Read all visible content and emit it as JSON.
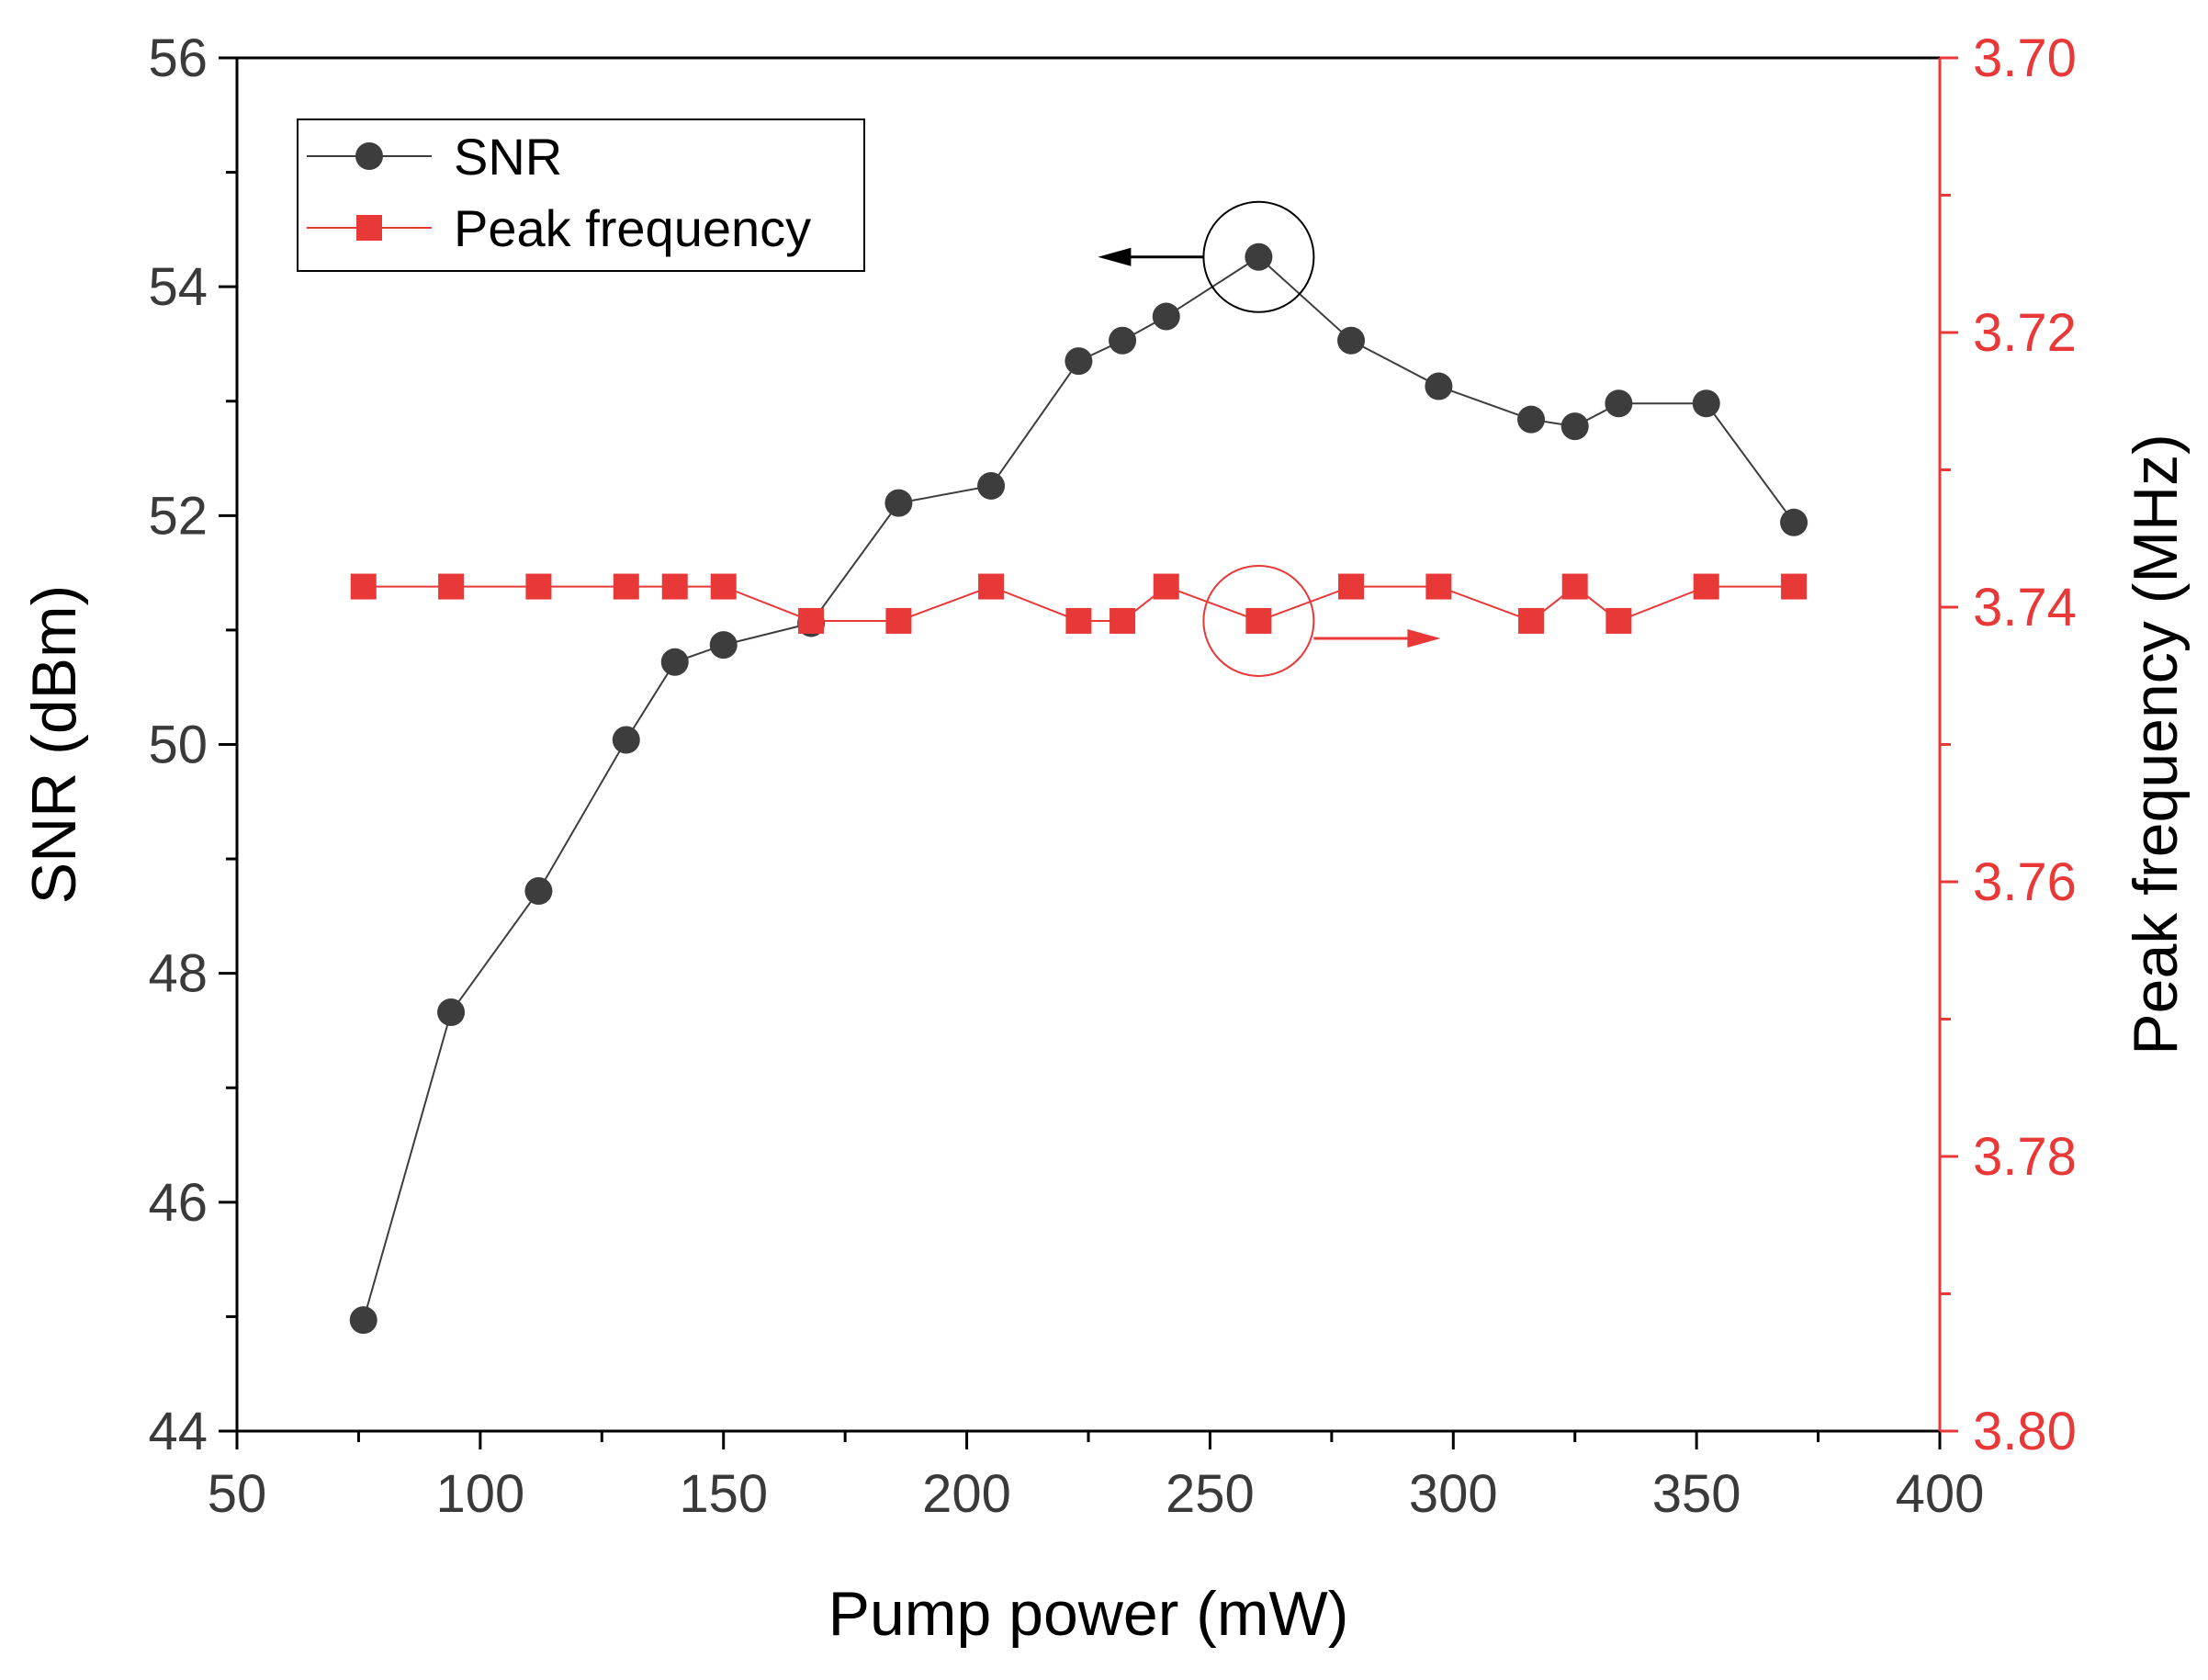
{
  "chart_data": {
    "type": "line",
    "xlabel": "Pump power (mW)",
    "ylabel_left": "SNR (dBm)",
    "ylabel_right": "Peak frequency (MHz)",
    "xlim": [
      50,
      400
    ],
    "xticks": [
      50,
      100,
      150,
      200,
      250,
      300,
      350,
      400
    ],
    "ylim_left": [
      44,
      56
    ],
    "yticks_left": [
      44,
      46,
      48,
      50,
      52,
      54,
      56
    ],
    "ylim_right": [
      3.7,
      3.8
    ],
    "right_axis_inverted": true,
    "yticks_right": [
      "3.70",
      "3.72",
      "3.74",
      "3.76",
      "3.78",
      "3.80"
    ],
    "legend_position": "top-left",
    "grid": false,
    "series": [
      {
        "name": "SNR",
        "axis": "left",
        "color": "#3d3d3d",
        "marker": "circle",
        "x": [
          76,
          94,
          112,
          130,
          140,
          150,
          168,
          186,
          205,
          223,
          232,
          241,
          260,
          279,
          297,
          316,
          325,
          334,
          352,
          370
        ],
        "y": [
          44.97,
          47.66,
          48.72,
          50.04,
          50.72,
          50.87,
          51.06,
          52.11,
          52.26,
          53.35,
          53.53,
          53.74,
          54.26,
          53.53,
          53.13,
          52.84,
          52.78,
          52.98,
          52.98,
          51.94
        ]
      },
      {
        "name": "Peak frequency",
        "axis": "right",
        "color": "#e83838",
        "marker": "square",
        "x": [
          76,
          94,
          112,
          130,
          140,
          150,
          168,
          186,
          205,
          223,
          232,
          241,
          260,
          279,
          297,
          316,
          325,
          334,
          352,
          370
        ],
        "y": [
          3.7385,
          3.7385,
          3.7385,
          3.7385,
          3.7385,
          3.7385,
          3.741,
          3.741,
          3.7385,
          3.741,
          3.741,
          3.7385,
          3.741,
          3.7385,
          3.7385,
          3.741,
          3.7385,
          3.741,
          3.7385,
          3.7385
        ]
      }
    ],
    "annotations": [
      {
        "type": "circle-arrow",
        "series": "SNR",
        "x": 260,
        "points_to": "left axis",
        "color": "#000000"
      },
      {
        "type": "circle-arrow",
        "series": "Peak frequency",
        "x": 260,
        "points_to": "right axis",
        "color": "#e83838"
      }
    ]
  }
}
